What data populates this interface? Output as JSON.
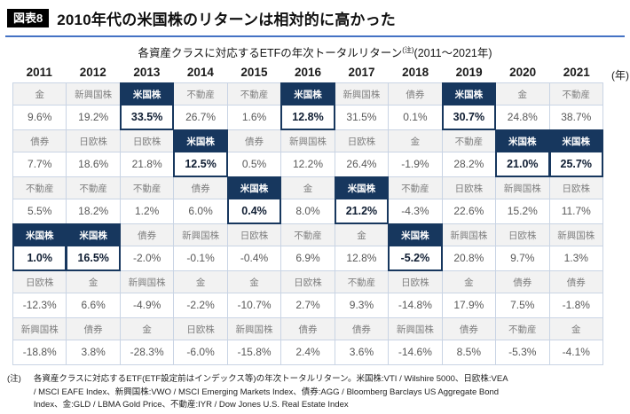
{
  "header": {
    "badge": "図表8",
    "title": "2010年代の米国株のリターンは相対的に高かった",
    "subtitle_main": "各資産クラスに対応するETFの年次トータルリターン",
    "subtitle_sup": "(注)",
    "subtitle_period": "(2011〜2021年)",
    "unit_label": "(年)"
  },
  "colors": {
    "highlight_navy": "#17375e",
    "grid_border": "#c9d4e4",
    "label_bg": "#f2f2f2",
    "label_text": "#7f7f7f",
    "value_text": "#595959",
    "title_rule_blue": "#4472c4",
    "badge_bg": "#000000"
  },
  "note": {
    "marker": "(注)",
    "lines": [
      "各資産クラスに対応するETF(ETF設定前はインデックス等)の年次トータルリターン。米国株:VTI / Wilshire 5000、日欧株:VEA",
      "/ MSCI EAFE Index、新興国株:VWO / MSCI Emerging Markets Index、債券:AGG / Bloomberg Barclays US Aggregate Bond",
      "Index、金:GLD / LBMA Gold Price、不動産:IYR / Dow Jones U.S. Real Estate Index"
    ]
  },
  "chart_data": {
    "type": "table",
    "title": "各資産クラスに対応するETFの年次トータルリターン(2011〜2021年)",
    "asset_classes": [
      "米国株",
      "日欧株",
      "新興国株",
      "債券",
      "金",
      "不動産"
    ],
    "rows_per_column": 6,
    "years": [
      "2011",
      "2012",
      "2013",
      "2014",
      "2015",
      "2016",
      "2017",
      "2018",
      "2019",
      "2020",
      "2021"
    ],
    "columns": [
      {
        "year": "2011",
        "ranked": [
          {
            "asset": "金",
            "value": "9.6%",
            "highlight": false
          },
          {
            "asset": "債券",
            "value": "7.7%",
            "highlight": false
          },
          {
            "asset": "不動産",
            "value": "5.5%",
            "highlight": false
          },
          {
            "asset": "米国株",
            "value": "1.0%",
            "highlight": true
          },
          {
            "asset": "日欧株",
            "value": "-12.3%",
            "highlight": false
          },
          {
            "asset": "新興国株",
            "value": "-18.8%",
            "highlight": false
          }
        ]
      },
      {
        "year": "2012",
        "ranked": [
          {
            "asset": "新興国株",
            "value": "19.2%",
            "highlight": false
          },
          {
            "asset": "日欧株",
            "value": "18.6%",
            "highlight": false
          },
          {
            "asset": "不動産",
            "value": "18.2%",
            "highlight": false
          },
          {
            "asset": "米国株",
            "value": "16.5%",
            "highlight": true
          },
          {
            "asset": "金",
            "value": "6.6%",
            "highlight": false
          },
          {
            "asset": "債券",
            "value": "3.8%",
            "highlight": false
          }
        ]
      },
      {
        "year": "2013",
        "ranked": [
          {
            "asset": "米国株",
            "value": "33.5%",
            "highlight": true
          },
          {
            "asset": "日欧株",
            "value": "21.8%",
            "highlight": false
          },
          {
            "asset": "不動産",
            "value": "1.2%",
            "highlight": false
          },
          {
            "asset": "債券",
            "value": "-2.0%",
            "highlight": false
          },
          {
            "asset": "新興国株",
            "value": "-4.9%",
            "highlight": false
          },
          {
            "asset": "金",
            "value": "-28.3%",
            "highlight": false
          }
        ]
      },
      {
        "year": "2014",
        "ranked": [
          {
            "asset": "不動産",
            "value": "26.7%",
            "highlight": false
          },
          {
            "asset": "米国株",
            "value": "12.5%",
            "highlight": true
          },
          {
            "asset": "債券",
            "value": "6.0%",
            "highlight": false
          },
          {
            "asset": "新興国株",
            "value": "-0.1%",
            "highlight": false
          },
          {
            "asset": "金",
            "value": "-2.2%",
            "highlight": false
          },
          {
            "asset": "日欧株",
            "value": "-6.0%",
            "highlight": false
          }
        ]
      },
      {
        "year": "2015",
        "ranked": [
          {
            "asset": "不動産",
            "value": "1.6%",
            "highlight": false
          },
          {
            "asset": "債券",
            "value": "0.5%",
            "highlight": false
          },
          {
            "asset": "米国株",
            "value": "0.4%",
            "highlight": true
          },
          {
            "asset": "日欧株",
            "value": "-0.4%",
            "highlight": false
          },
          {
            "asset": "金",
            "value": "-10.7%",
            "highlight": false
          },
          {
            "asset": "新興国株",
            "value": "-15.8%",
            "highlight": false
          }
        ]
      },
      {
        "year": "2016",
        "ranked": [
          {
            "asset": "米国株",
            "value": "12.8%",
            "highlight": true
          },
          {
            "asset": "新興国株",
            "value": "12.2%",
            "highlight": false
          },
          {
            "asset": "金",
            "value": "8.0%",
            "highlight": false
          },
          {
            "asset": "不動産",
            "value": "6.9%",
            "highlight": false
          },
          {
            "asset": "日欧株",
            "value": "2.7%",
            "highlight": false
          },
          {
            "asset": "債券",
            "value": "2.4%",
            "highlight": false
          }
        ]
      },
      {
        "year": "2017",
        "ranked": [
          {
            "asset": "新興国株",
            "value": "31.5%",
            "highlight": false
          },
          {
            "asset": "日欧株",
            "value": "26.4%",
            "highlight": false
          },
          {
            "asset": "米国株",
            "value": "21.2%",
            "highlight": true
          },
          {
            "asset": "金",
            "value": "12.8%",
            "highlight": false
          },
          {
            "asset": "不動産",
            "value": "9.3%",
            "highlight": false
          },
          {
            "asset": "債券",
            "value": "3.6%",
            "highlight": false
          }
        ]
      },
      {
        "year": "2018",
        "ranked": [
          {
            "asset": "債券",
            "value": "0.1%",
            "highlight": false
          },
          {
            "asset": "金",
            "value": "-1.9%",
            "highlight": false
          },
          {
            "asset": "不動産",
            "value": "-4.3%",
            "highlight": false
          },
          {
            "asset": "米国株",
            "value": "-5.2%",
            "highlight": true
          },
          {
            "asset": "日欧株",
            "value": "-14.8%",
            "highlight": false
          },
          {
            "asset": "新興国株",
            "value": "-14.6%",
            "highlight": false
          }
        ]
      },
      {
        "year": "2019",
        "ranked": [
          {
            "asset": "米国株",
            "value": "30.7%",
            "highlight": true
          },
          {
            "asset": "不動産",
            "value": "28.2%",
            "highlight": false
          },
          {
            "asset": "日欧株",
            "value": "22.6%",
            "highlight": false
          },
          {
            "asset": "新興国株",
            "value": "20.8%",
            "highlight": false
          },
          {
            "asset": "金",
            "value": "17.9%",
            "highlight": false
          },
          {
            "asset": "債券",
            "value": "8.5%",
            "highlight": false
          }
        ]
      },
      {
        "year": "2020",
        "ranked": [
          {
            "asset": "金",
            "value": "24.8%",
            "highlight": false
          },
          {
            "asset": "米国株",
            "value": "21.0%",
            "highlight": true
          },
          {
            "asset": "新興国株",
            "value": "15.2%",
            "highlight": false
          },
          {
            "asset": "日欧株",
            "value": "9.7%",
            "highlight": false
          },
          {
            "asset": "債券",
            "value": "7.5%",
            "highlight": false
          },
          {
            "asset": "不動産",
            "value": "-5.3%",
            "highlight": false
          }
        ]
      },
      {
        "year": "2021",
        "ranked": [
          {
            "asset": "不動産",
            "value": "38.7%",
            "highlight": false
          },
          {
            "asset": "米国株",
            "value": "25.7%",
            "highlight": true
          },
          {
            "asset": "日欧株",
            "value": "11.7%",
            "highlight": false
          },
          {
            "asset": "新興国株",
            "value": "1.3%",
            "highlight": false
          },
          {
            "asset": "債券",
            "value": "-1.8%",
            "highlight": false
          },
          {
            "asset": "金",
            "value": "-4.1%",
            "highlight": false
          }
        ]
      }
    ]
  }
}
